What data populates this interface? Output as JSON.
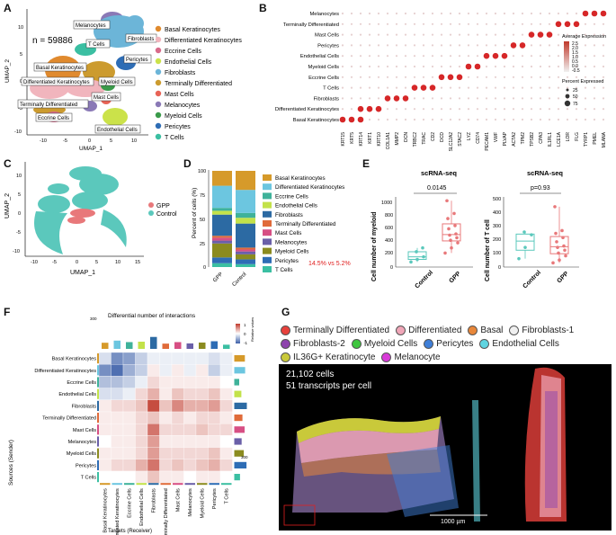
{
  "colors": {
    "basal": "#e08a2e",
    "differentiated": "#f1b5bd",
    "eccrine": "#d86a8a",
    "endothelial": "#cbe24a",
    "fibroblasts": "#6cb5d8",
    "terminally": "#cc9b2f",
    "mast": "#e86356",
    "melanocytes": "#8a79b6",
    "myeloid": "#3a9a4a",
    "pericytes": "#2e6db5",
    "tcells": "#3bbfa2",
    "gpp": "#e8787a",
    "control": "#5bc8bc",
    "red_text": "#e02020",
    "heat_high": "#c0392b",
    "heat_low": "#3b5fa8"
  },
  "panel_labels": {
    "a": "A",
    "b": "B",
    "c": "C",
    "d": "D",
    "e": "E",
    "f": "F",
    "g": "G"
  },
  "panel_a": {
    "n_label": "n = 59886",
    "xlabel": "UMAP_1",
    "ylabel": "UMAP_2",
    "xticks": [
      "-10",
      "-5",
      "0",
      "5",
      "10"
    ],
    "yticks": [
      "10",
      "5",
      "0",
      "-5",
      "-10"
    ],
    "cluster_tags": [
      "Melanocytes",
      "Fibroblasts",
      "T Cells",
      "Pericytes",
      "Basal Keratinocytes",
      "Differentiated Keratinocytes",
      "Myeloid Cells",
      "Mast Cells",
      "Terminally Differentiated",
      "Eccrine Cells",
      "Endothelial Cells"
    ],
    "legend": [
      "Basal Keratinocytes",
      "Differentiated Keratinocytes",
      "Eccrine Cells",
      "Endothelial Cells",
      "Fibroblasts",
      "Terminally Differentiated",
      "Mast Cells",
      "Melanocytes",
      "Myeloid Cells",
      "Pericytes",
      "T Cells"
    ]
  },
  "panel_b": {
    "rows": [
      "Melanocytes",
      "Terminally Differentiated",
      "Mast Cells",
      "Pericytes",
      "Endothelial Cells",
      "Myeloid Cells",
      "Eccrine Cells",
      "T Cells",
      "Fibroblasts",
      "Differentiated Keratinocytes",
      "Basal Keratinocytes"
    ],
    "genes": [
      "KRT15",
      "KRT5",
      "KRT14",
      "KRT1",
      "KRT10",
      "COL1A1",
      "MMP2",
      "DCN",
      "TRBC2",
      "TRAC",
      "CD2",
      "DCD",
      "SLC12A2",
      "STAC2",
      "LYZ",
      "CD74",
      "PECAM1",
      "VWF",
      "PLVAP",
      "ACTA2",
      "TPM2",
      "TPSB2",
      "CPA3",
      "IL1RL1",
      "LCE1A",
      "LOR",
      "FLG",
      "TYRP1",
      "PMEL",
      "MLANA"
    ],
    "legend_title_expr": "Average Expression",
    "expr_ticks": [
      "2.5",
      "2.0",
      "1.5",
      "1.0",
      "0.5",
      "0.0",
      "-0.5"
    ],
    "legend_title_pct": "Percent Expressed",
    "pct_ticks": [
      "25",
      "50",
      "75"
    ]
  },
  "panel_c": {
    "xlabel": "UMAP_1",
    "ylabel": "UMAP_2",
    "xticks": [
      "-10",
      "-5",
      "0",
      "5",
      "10",
      "15"
    ],
    "yticks": [
      "10",
      "5",
      "0",
      "-5",
      "-10"
    ],
    "legend": [
      "GPP",
      "Control"
    ]
  },
  "panel_d": {
    "ylabel": "Percent of cells (%)",
    "yticks": [
      "100",
      "75",
      "50",
      "25",
      "0"
    ],
    "annotation": "14.5% vs 5.2%",
    "chart_data": {
      "type": "bar",
      "stacked": true,
      "categories": [
        "GPP",
        "Control"
      ],
      "series": [
        {
          "name": "T Cells",
          "values": [
            4,
            3
          ]
        },
        {
          "name": "Pericytes",
          "values": [
            6,
            5
          ]
        },
        {
          "name": "Myeloid Cells",
          "values": [
            14.5,
            5.2
          ]
        },
        {
          "name": "Melanocytes",
          "values": [
            3,
            3
          ]
        },
        {
          "name": "Mast Cells",
          "values": [
            3,
            2
          ]
        },
        {
          "name": "Terminally Differentiated",
          "values": [
            2,
            2
          ]
        },
        {
          "name": "Fibroblasts",
          "values": [
            22,
            25
          ]
        },
        {
          "name": "Endothelial Cells",
          "values": [
            4,
            6
          ]
        },
        {
          "name": "Eccrine Cells",
          "values": [
            3,
            5
          ]
        },
        {
          "name": "Differentiated Keratinocytes",
          "values": [
            23,
            24
          ]
        },
        {
          "name": "Basal Keratinocytes",
          "values": [
            15.5,
            19.8
          ]
        }
      ],
      "ylabel": "Percent of cells (%)",
      "ylim": [
        0,
        100
      ]
    }
  },
  "panel_e": {
    "title_left": "scRNA-seq",
    "title_right": "scRNA-seq",
    "pval_left": "0.0145",
    "pval_right": "p=0.93",
    "ylabel_left": "Cell number of myeloid",
    "ylabel_right": "Cell number of T cell",
    "xtick_left": [
      "Control",
      "GPP"
    ],
    "xtick_right": [
      "Control",
      "GPP"
    ],
    "yticks_left": [
      "1000",
      "800",
      "600",
      "400",
      "200",
      "0"
    ],
    "yticks_right": [
      "500",
      "400",
      "300",
      "200",
      "100",
      "0"
    ],
    "chart_data": [
      {
        "type": "box",
        "title": "scRNA-seq",
        "ylabel": "Cell number of myeloid",
        "ylim": [
          0,
          1100
        ],
        "groups": [
          {
            "name": "Control",
            "points": [
              80,
              120,
              160,
              240,
              300
            ]
          },
          {
            "name": "GPP",
            "points": [
              220,
              300,
              380,
              420,
              460,
              500,
              520,
              600,
              650,
              760,
              840,
              1040
            ]
          }
        ]
      },
      {
        "type": "box",
        "title": "scRNA-seq",
        "ylabel": "Cell number of T cell",
        "ylim": [
          0,
          500
        ],
        "groups": [
          {
            "name": "Control",
            "points": [
              60,
              140,
              230,
              250
            ]
          },
          {
            "name": "GPP",
            "points": [
              30,
              50,
              80,
              100,
              120,
              140,
              150,
              180,
              210,
              240,
              260,
              430
            ]
          }
        ]
      }
    ]
  },
  "panel_f": {
    "title": "Differential number of interactions",
    "ylabel": "Sources (Sender)",
    "xlabel": "Targets (Receiver)",
    "legend_title": "Relative values",
    "legend_ticks": [
      "1",
      "0",
      "-1"
    ],
    "rows": [
      "Basal Keratinocytes",
      "Differentiated Keratinocytes",
      "Eccrine Cells",
      "Endothelial Cells",
      "Fibroblasts",
      "Terminally Differentiated",
      "Mast Cells",
      "Melanocytes",
      "Myeloid Cells",
      "Pericytes",
      "T Cells"
    ],
    "cols": [
      "Basal Keratinocytes",
      "Differentiated Keratinocytes",
      "Eccrine Cells",
      "Endothelial Cells",
      "Fibroblasts",
      "Terminally Differentiated",
      "Mast Cells",
      "Melanocytes",
      "Myeloid Cells",
      "Pericytes",
      "T Cells"
    ],
    "top_tick": "300",
    "right_tick": "300",
    "matrix": [
      [
        -0.2,
        -0.7,
        -0.6,
        -0.3,
        -0.1,
        -0.1,
        -0.1,
        -0.1,
        -0.1,
        -0.2,
        -0.1
      ],
      [
        -0.7,
        -0.9,
        -0.5,
        -0.3,
        0.1,
        -0.1,
        0.1,
        -0.1,
        0.1,
        -0.3,
        -0.1
      ],
      [
        -0.4,
        -0.4,
        -0.3,
        -0.1,
        0.2,
        0.1,
        0.1,
        0.1,
        0.1,
        0.1,
        0.0
      ],
      [
        -0.2,
        -0.2,
        -0.1,
        0.2,
        0.4,
        0.1,
        0.3,
        0.2,
        0.2,
        0.3,
        0.1
      ],
      [
        0.1,
        0.2,
        0.2,
        0.3,
        0.9,
        0.3,
        0.6,
        0.4,
        0.4,
        0.5,
        0.2
      ],
      [
        0.1,
        0.1,
        0.1,
        0.2,
        0.3,
        0.1,
        0.2,
        0.1,
        0.2,
        0.2,
        0.1
      ],
      [
        0.1,
        0.1,
        0.1,
        0.2,
        0.7,
        0.2,
        0.2,
        0.2,
        0.3,
        0.2,
        0.2
      ],
      [
        0.0,
        0.1,
        0.1,
        0.2,
        0.5,
        0.1,
        0.1,
        0.1,
        0.1,
        0.1,
        0.0
      ],
      [
        0.1,
        0.1,
        0.1,
        0.2,
        0.5,
        0.2,
        0.2,
        0.2,
        0.2,
        0.3,
        0.1
      ],
      [
        0.1,
        0.2,
        0.2,
        0.4,
        0.7,
        0.2,
        0.3,
        0.2,
        0.3,
        0.4,
        0.2
      ],
      [
        0.0,
        0.0,
        0.0,
        0.1,
        0.3,
        0.1,
        0.1,
        0.0,
        0.1,
        0.1,
        0.0
      ]
    ]
  },
  "panel_g": {
    "legend": [
      {
        "label": "Terminally Differentiated",
        "color": "#e8413c"
      },
      {
        "label": "Differentiated",
        "color": "#f0a6b8"
      },
      {
        "label": "Basal",
        "color": "#e8873a"
      },
      {
        "label": "Fibroblasts-1",
        "color": "#f0f0f0"
      },
      {
        "label": "Fibroblasts-2",
        "color": "#8e44ad"
      },
      {
        "label": "Myeloid Cells",
        "color": "#3fc63f"
      },
      {
        "label": "Pericytes",
        "color": "#3f7fd8"
      },
      {
        "label": "Endothelial Cells",
        "color": "#5fd4e0"
      },
      {
        "label": "IL36G+ Keratinocyte",
        "color": "#c9c93a"
      },
      {
        "label": "Melanocyte",
        "color": "#d83ad8"
      }
    ],
    "cells_line": "21,102 cells",
    "transcripts_line": "51 transcripts per cell",
    "scalebar": "1000 µm"
  }
}
